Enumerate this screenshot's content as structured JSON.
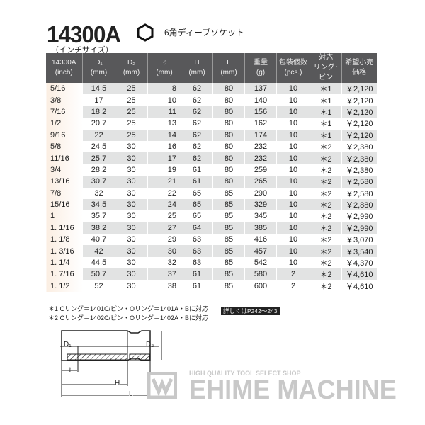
{
  "header": {
    "title": "14300A",
    "subtitle": "（インチサイズ）",
    "product_type": "6角ディープソケット",
    "icon": "hexagon-icon"
  },
  "table": {
    "columns": [
      "14300A\n(inch)",
      "D₁\n(mm)",
      "D₂\n(mm)",
      "ℓ\n(mm)",
      "H\n(mm)",
      "L\n(mm)",
      "重量\n(g)",
      "包装個数\n(pcs.)",
      "対応\nリング･ピン",
      "希望小売\n価格"
    ],
    "rows": [
      [
        "5/16",
        "14.5",
        "25",
        "8",
        "62",
        "80",
        "137",
        "10",
        "＊1",
        "￥2,120"
      ],
      [
        "3/8",
        "17",
        "25",
        "10",
        "62",
        "80",
        "140",
        "10",
        "＊1",
        "￥2,120"
      ],
      [
        "7/16",
        "18.2",
        "25",
        "11",
        "62",
        "80",
        "156",
        "10",
        "＊1",
        "￥2,120"
      ],
      [
        "1/2",
        "20.7",
        "25",
        "13",
        "62",
        "80",
        "162",
        "10",
        "＊1",
        "￥2,120"
      ],
      [
        "9/16",
        "22",
        "25",
        "14",
        "62",
        "80",
        "174",
        "10",
        "＊1",
        "￥2,120"
      ],
      [
        "5/8",
        "24.5",
        "30",
        "16",
        "62",
        "80",
        "232",
        "10",
        "＊2",
        "￥2,380"
      ],
      [
        "11/16",
        "25.7",
        "30",
        "17",
        "62",
        "80",
        "232",
        "10",
        "＊2",
        "￥2,380"
      ],
      [
        "3/4",
        "28.2",
        "30",
        "19",
        "61",
        "80",
        "259",
        "10",
        "＊2",
        "￥2,380"
      ],
      [
        "13/16",
        "30.7",
        "30",
        "21",
        "61",
        "80",
        "265",
        "10",
        "＊2",
        "￥2,580"
      ],
      [
        "7/8",
        "32",
        "30",
        "22",
        "65",
        "85",
        "290",
        "10",
        "＊2",
        "￥2,580"
      ],
      [
        "15/16",
        "34.5",
        "30",
        "24",
        "65",
        "85",
        "329",
        "10",
        "＊2",
        "￥2,880"
      ],
      [
        "1",
        "35.7",
        "30",
        "25",
        "65",
        "85",
        "345",
        "10",
        "＊2",
        "￥2,990"
      ],
      [
        "1. 1/16",
        "38.2",
        "30",
        "27",
        "64",
        "85",
        "385",
        "10",
        "＊2",
        "￥2,990"
      ],
      [
        "1. 1/8",
        "40.7",
        "30",
        "29",
        "63",
        "85",
        "416",
        "10",
        "＊2",
        "￥3,070"
      ],
      [
        "1. 3/16",
        "42",
        "30",
        "30",
        "63",
        "85",
        "457",
        "10",
        "＊2",
        "￥3,540"
      ],
      [
        "1. 1/4",
        "44.5",
        "30",
        "32",
        "63",
        "85",
        "542",
        "10",
        "＊2",
        "￥4,370"
      ],
      [
        "1. 7/16",
        "50.7",
        "30",
        "37",
        "61",
        "85",
        "580",
        "2",
        "＊2",
        "￥4,610"
      ],
      [
        "1. 1/2",
        "52",
        "30",
        "38",
        "61",
        "85",
        "600",
        "2",
        "＊2",
        "￥4,610"
      ]
    ]
  },
  "notes": [
    "＊1 Cリング＝1401C/ピン・Oリング＝1401A・Bに対応",
    "＊2 Cリング＝1402C/ピン・Oリング＝1402A・Bに対応"
  ],
  "more_info": "詳しくはP242～243",
  "diagram": {
    "d1": "D₁",
    "d2": "D₂",
    "l_small": "ℓ",
    "h": "H",
    "l": "L"
  },
  "watermark": {
    "tagline": "HIGH QUALITY TOOL SELECT SHOP",
    "name": "EHIME MACHINE"
  }
}
